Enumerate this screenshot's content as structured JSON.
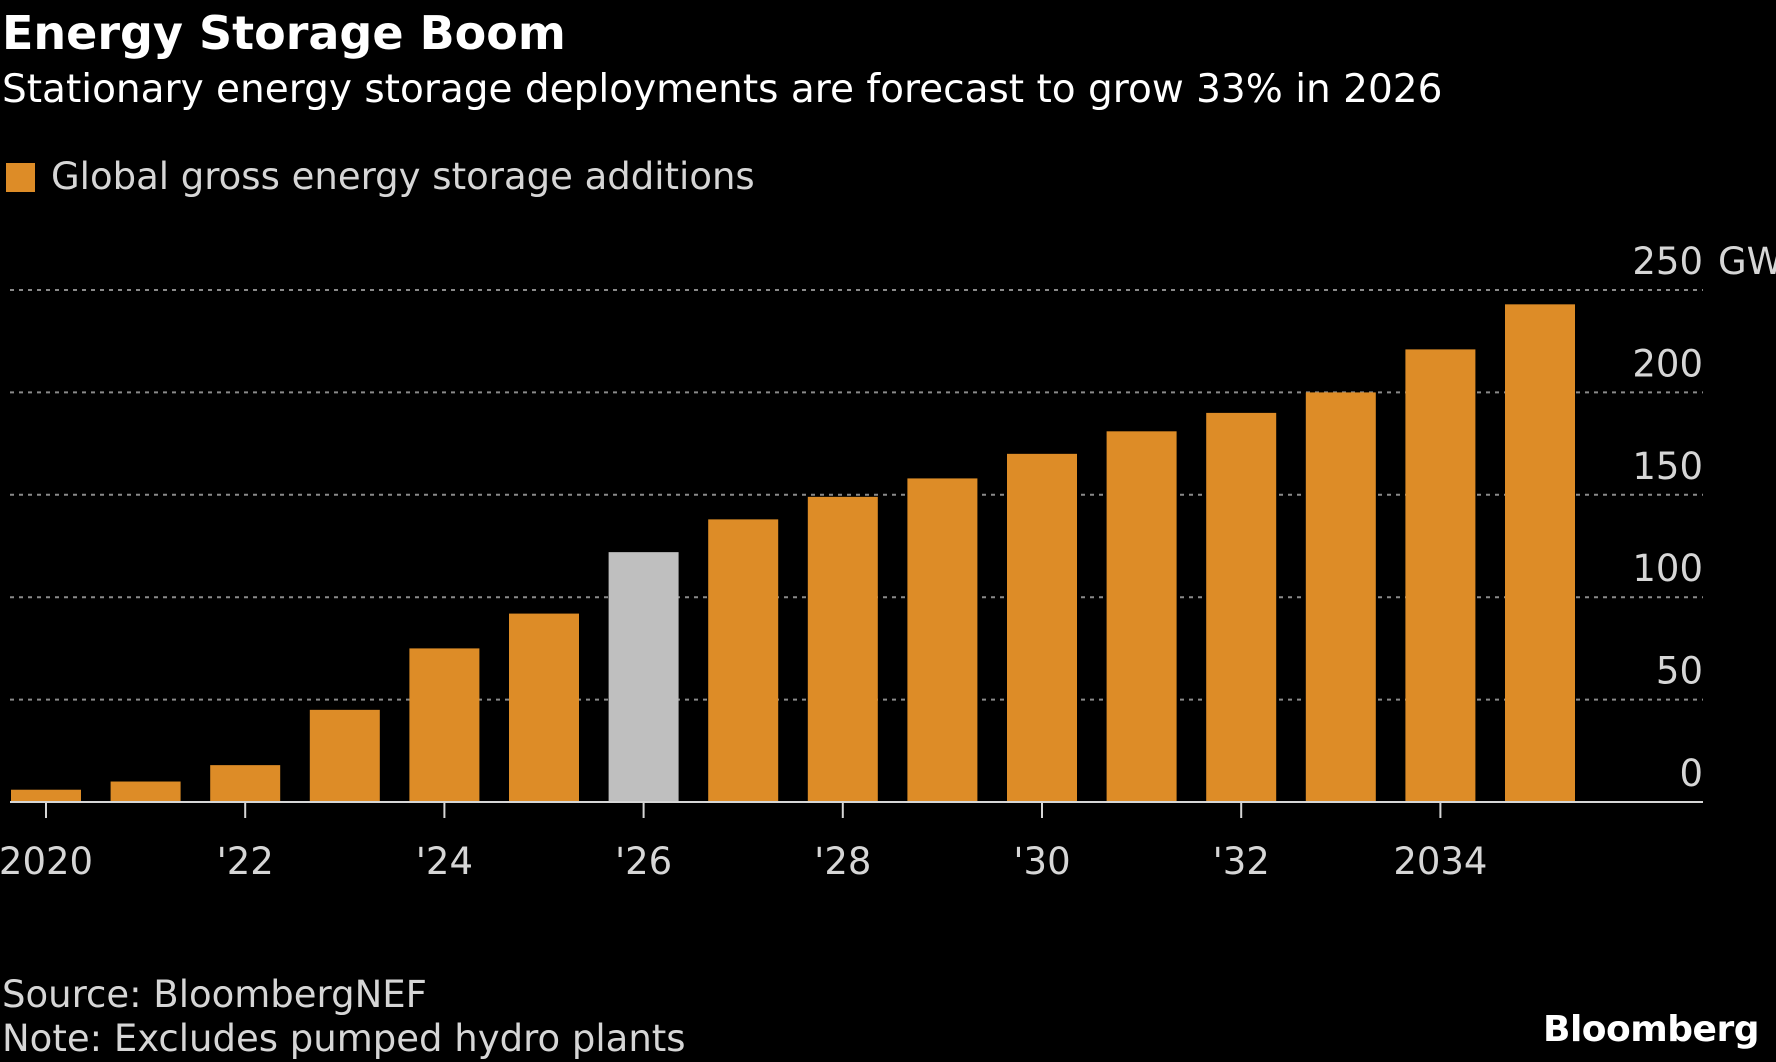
{
  "header": {
    "title": "Energy Storage Boom",
    "subtitle": "Stationary energy storage deployments are forecast to grow 33% in 2026"
  },
  "legend": {
    "label": "Global gross energy storage additions",
    "swatch_color": "#dd8c27"
  },
  "footer": {
    "source": "Source: BloombergNEF",
    "note": "Note: Excludes pumped hydro plants",
    "brand": "Bloomberg"
  },
  "colors": {
    "background": "#000000",
    "bar": "#dd8c27",
    "highlight_bar": "#bfbfbf",
    "gridline": "#8a8a8a",
    "axis": "#d6d6d6"
  },
  "chart_data": {
    "type": "bar",
    "title": "Energy Storage Boom",
    "subtitle": "Stationary energy storage deployments are forecast to grow 33% in 2026",
    "x": [
      2020,
      2021,
      2022,
      2023,
      2024,
      2025,
      2026,
      2027,
      2028,
      2029,
      2030,
      2031,
      2032,
      2033,
      2034,
      2035
    ],
    "x_tick_labels": [
      {
        "x": 2020,
        "label": "2020"
      },
      {
        "x": 2022,
        "label": "'22"
      },
      {
        "x": 2024,
        "label": "'24"
      },
      {
        "x": 2026,
        "label": "'26"
      },
      {
        "x": 2028,
        "label": "'28"
      },
      {
        "x": 2030,
        "label": "'30"
      },
      {
        "x": 2032,
        "label": "'32"
      },
      {
        "x": 2034,
        "label": "2034"
      }
    ],
    "series": [
      {
        "name": "Global gross energy storage additions",
        "values": [
          6,
          10,
          18,
          45,
          75,
          92,
          122,
          138,
          149,
          158,
          170,
          181,
          190,
          200,
          221,
          243
        ]
      }
    ],
    "highlight_x": 2026,
    "ylim": [
      0,
      250
    ],
    "y_ticks": [
      0,
      50,
      100,
      150,
      200,
      250
    ],
    "y_unit": "GW",
    "grid": true,
    "legend_position": "top-left"
  }
}
